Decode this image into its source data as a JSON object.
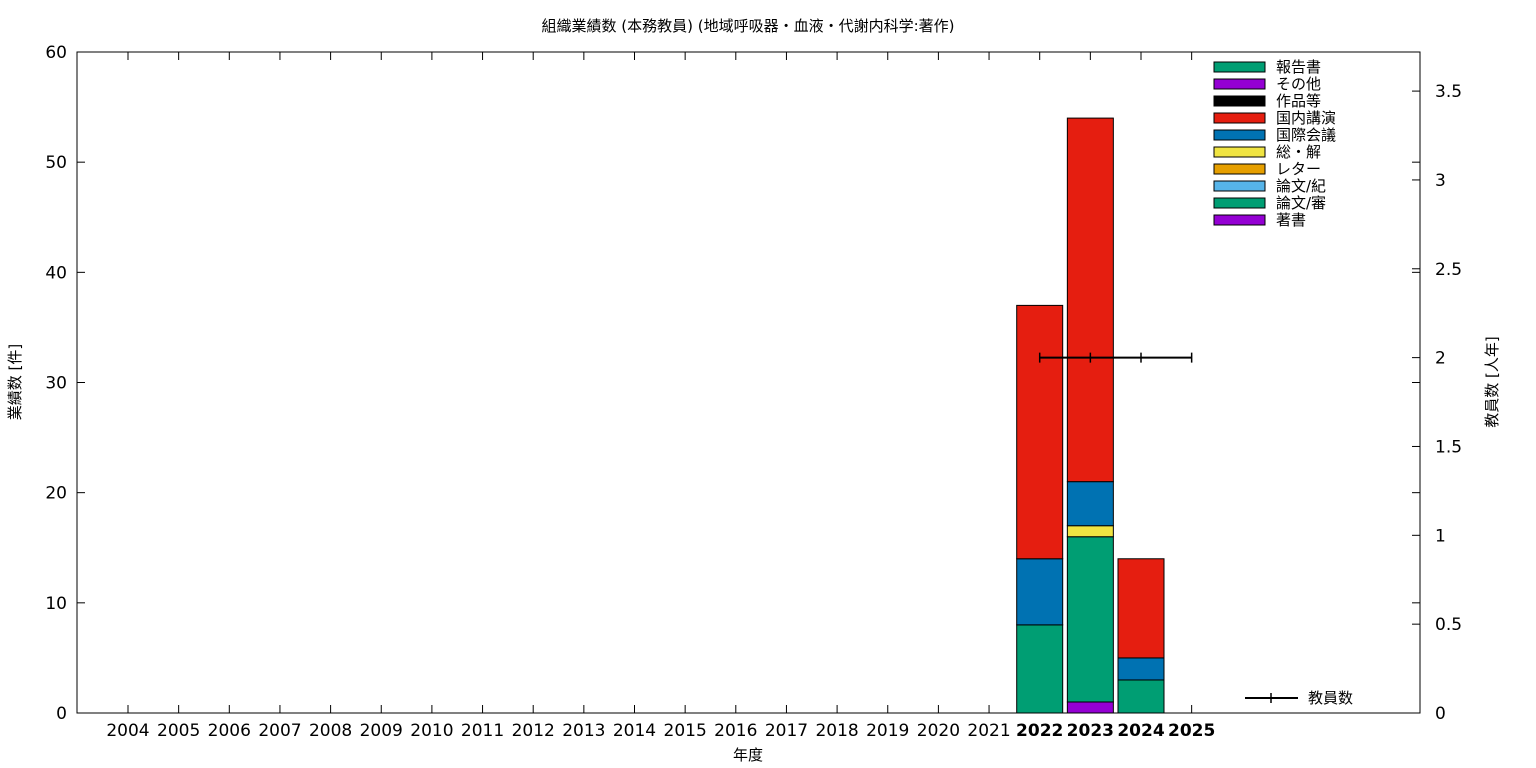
{
  "chart_data": {
    "type": "bar",
    "stacked": true,
    "title": "組織業績数 (本務教員) (地域呼吸器・血液・代謝内科学:著作)",
    "xlabel": "年度",
    "ylabel": "業績数 [件]",
    "y2label": "教員数 [人年]",
    "ylim": [
      0,
      60
    ],
    "y2lim": [
      0,
      3.72
    ],
    "yticks": [
      "0",
      "10",
      "20",
      "30",
      "40",
      "50",
      "60"
    ],
    "y2ticks": [
      "0",
      "0.5",
      "1",
      "1.5",
      "2",
      "2.5",
      "3",
      "3.5"
    ],
    "categories": [
      "2004",
      "2005",
      "2006",
      "2007",
      "2008",
      "2009",
      "2010",
      "2011",
      "2012",
      "2013",
      "2014",
      "2015",
      "2016",
      "2017",
      "2018",
      "2019",
      "2020",
      "2021",
      "2022",
      "2023",
      "2024",
      "2025"
    ],
    "highlighted_categories": [
      "2022",
      "2023",
      "2024",
      "2025"
    ],
    "legend_position": "top-right",
    "series": [
      {
        "name": "著書",
        "color": "#9400d3",
        "values": [
          0,
          0,
          0,
          0,
          0,
          0,
          0,
          0,
          0,
          0,
          0,
          0,
          0,
          0,
          0,
          0,
          0,
          0,
          0,
          1,
          0,
          0
        ]
      },
      {
        "name": "論文/審",
        "color": "#009e73",
        "values": [
          0,
          0,
          0,
          0,
          0,
          0,
          0,
          0,
          0,
          0,
          0,
          0,
          0,
          0,
          0,
          0,
          0,
          0,
          8,
          15,
          3,
          0
        ]
      },
      {
        "name": "論文/紀",
        "color": "#56b4e9",
        "values": [
          0,
          0,
          0,
          0,
          0,
          0,
          0,
          0,
          0,
          0,
          0,
          0,
          0,
          0,
          0,
          0,
          0,
          0,
          0,
          0,
          0,
          0
        ]
      },
      {
        "name": "レター",
        "color": "#e69f00",
        "values": [
          0,
          0,
          0,
          0,
          0,
          0,
          0,
          0,
          0,
          0,
          0,
          0,
          0,
          0,
          0,
          0,
          0,
          0,
          0,
          0,
          0,
          0
        ]
      },
      {
        "name": "総・解",
        "color": "#f0e442",
        "values": [
          0,
          0,
          0,
          0,
          0,
          0,
          0,
          0,
          0,
          0,
          0,
          0,
          0,
          0,
          0,
          0,
          0,
          0,
          0,
          1,
          0,
          0
        ]
      },
      {
        "name": "国際会議",
        "color": "#0072b2",
        "values": [
          0,
          0,
          0,
          0,
          0,
          0,
          0,
          0,
          0,
          0,
          0,
          0,
          0,
          0,
          0,
          0,
          0,
          0,
          6,
          4,
          2,
          0
        ]
      },
      {
        "name": "国内講演",
        "color": "#e51e10",
        "values": [
          0,
          0,
          0,
          0,
          0,
          0,
          0,
          0,
          0,
          0,
          0,
          0,
          0,
          0,
          0,
          0,
          0,
          0,
          23,
          33,
          9,
          0
        ]
      },
      {
        "name": "作品等",
        "color": "#000000",
        "values": [
          0,
          0,
          0,
          0,
          0,
          0,
          0,
          0,
          0,
          0,
          0,
          0,
          0,
          0,
          0,
          0,
          0,
          0,
          0,
          0,
          0,
          0
        ]
      },
      {
        "name": "その他",
        "color": "#9400d3",
        "values": [
          0,
          0,
          0,
          0,
          0,
          0,
          0,
          0,
          0,
          0,
          0,
          0,
          0,
          0,
          0,
          0,
          0,
          0,
          0,
          0,
          0,
          0
        ]
      },
      {
        "name": "報告書",
        "color": "#009e73",
        "values": [
          0,
          0,
          0,
          0,
          0,
          0,
          0,
          0,
          0,
          0,
          0,
          0,
          0,
          0,
          0,
          0,
          0,
          0,
          0,
          0,
          0,
          0
        ]
      }
    ],
    "line_series": {
      "name": "教員数",
      "color": "#000000",
      "axis": "y2",
      "points": [
        {
          "x": "2022",
          "y": 2
        },
        {
          "x": "2023",
          "y": 2
        },
        {
          "x": "2024",
          "y": 2
        },
        {
          "x": "2025",
          "y": 2
        }
      ]
    }
  }
}
